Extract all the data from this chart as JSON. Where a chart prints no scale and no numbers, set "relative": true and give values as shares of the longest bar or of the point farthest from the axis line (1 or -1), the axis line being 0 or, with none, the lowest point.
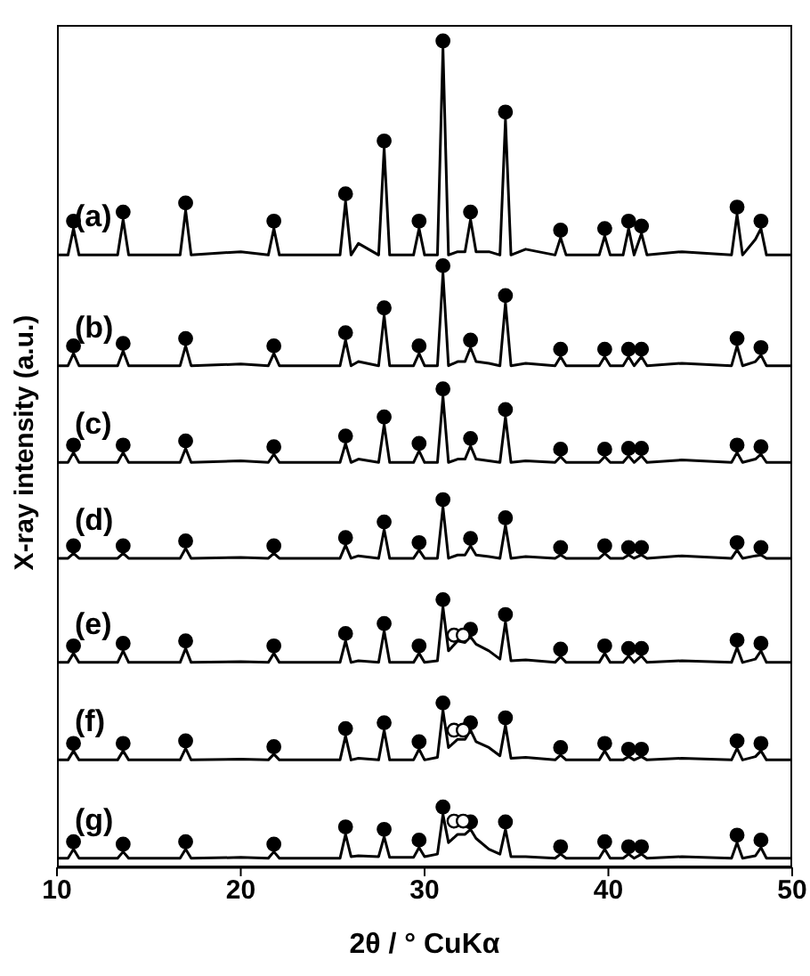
{
  "chart_data": {
    "type": "line",
    "relative": true,
    "xlabel": "2θ / ° CuKα",
    "ylabel": "X-ray intensity (a.u.)",
    "xlim": [
      10,
      50
    ],
    "xticks": [
      10,
      20,
      30,
      40,
      50
    ],
    "x": [
      10,
      10.6,
      10.9,
      11.2,
      13.3,
      13.6,
      13.9,
      16.7,
      17.0,
      17.3,
      20.0,
      21.5,
      21.8,
      22.1,
      25.4,
      25.7,
      26.0,
      26.4,
      27.5,
      27.8,
      28.1,
      29.4,
      29.7,
      30.0,
      30.7,
      31.0,
      31.3,
      31.8,
      32.2,
      32.5,
      32.8,
      33.5,
      34.1,
      34.4,
      34.7,
      35.5,
      37.1,
      37.4,
      37.7,
      39.5,
      39.8,
      40.1,
      40.8,
      41.1,
      41.4,
      41.8,
      42.1,
      44.0,
      46.7,
      47.0,
      47.3,
      48.0,
      48.3,
      48.6,
      50
    ],
    "series": [
      {
        "name": "(a)",
        "color": "#000000",
        "values": [
          0.741,
          0.741,
          0.773,
          0.741,
          0.741,
          0.784,
          0.741,
          0.741,
          0.795,
          0.741,
          0.745,
          0.741,
          0.773,
          0.741,
          0.741,
          0.806,
          0.741,
          0.755,
          0.741,
          0.87,
          0.741,
          0.741,
          0.773,
          0.741,
          0.741,
          0.991,
          0.741,
          0.745,
          0.745,
          0.784,
          0.745,
          0.745,
          0.741,
          0.905,
          0.741,
          0.748,
          0.741,
          0.762,
          0.741,
          0.741,
          0.764,
          0.741,
          0.741,
          0.773,
          0.741,
          0.767,
          0.741,
          0.745,
          0.741,
          0.79,
          0.741,
          0.76,
          0.773,
          0.741,
          0.741
        ]
      },
      {
        "name": "(b)",
        "color": "#000000",
        "values": [
          0.607,
          0.607,
          0.622,
          0.607,
          0.607,
          0.625,
          0.607,
          0.607,
          0.631,
          0.607,
          0.609,
          0.607,
          0.622,
          0.607,
          0.607,
          0.638,
          0.607,
          0.612,
          0.607,
          0.668,
          0.607,
          0.607,
          0.622,
          0.607,
          0.607,
          0.719,
          0.607,
          0.612,
          0.612,
          0.629,
          0.612,
          0.61,
          0.607,
          0.683,
          0.607,
          0.61,
          0.607,
          0.618,
          0.607,
          0.607,
          0.618,
          0.607,
          0.607,
          0.618,
          0.607,
          0.618,
          0.607,
          0.61,
          0.607,
          0.631,
          0.607,
          0.612,
          0.62,
          0.607,
          0.607
        ]
      },
      {
        "name": "(c)",
        "color": "#000000",
        "values": [
          0.49,
          0.49,
          0.502,
          0.49,
          0.49,
          0.502,
          0.49,
          0.49,
          0.507,
          0.49,
          0.492,
          0.49,
          0.5,
          0.49,
          0.49,
          0.513,
          0.49,
          0.494,
          0.49,
          0.536,
          0.49,
          0.49,
          0.504,
          0.49,
          0.49,
          0.57,
          0.49,
          0.494,
          0.494,
          0.51,
          0.494,
          0.492,
          0.49,
          0.545,
          0.49,
          0.492,
          0.49,
          0.497,
          0.49,
          0.49,
          0.497,
          0.49,
          0.49,
          0.498,
          0.49,
          0.498,
          0.49,
          0.493,
          0.49,
          0.502,
          0.49,
          0.494,
          0.5,
          0.49,
          0.49
        ]
      },
      {
        "name": "(d)",
        "color": "#000000",
        "values": [
          0.374,
          0.374,
          0.38,
          0.374,
          0.374,
          0.38,
          0.374,
          0.374,
          0.386,
          0.374,
          0.375,
          0.374,
          0.38,
          0.374,
          0.374,
          0.39,
          0.374,
          0.377,
          0.374,
          0.409,
          0.374,
          0.374,
          0.384,
          0.374,
          0.374,
          0.436,
          0.374,
          0.378,
          0.378,
          0.389,
          0.378,
          0.376,
          0.374,
          0.414,
          0.374,
          0.376,
          0.374,
          0.378,
          0.374,
          0.374,
          0.38,
          0.374,
          0.374,
          0.378,
          0.374,
          0.378,
          0.374,
          0.377,
          0.374,
          0.384,
          0.374,
          0.377,
          0.378,
          0.374,
          0.374
        ]
      },
      {
        "name": "(e)",
        "color": "#000000",
        "values": [
          0.248,
          0.248,
          0.259,
          0.248,
          0.248,
          0.262,
          0.248,
          0.248,
          0.265,
          0.248,
          0.249,
          0.248,
          0.259,
          0.248,
          0.248,
          0.274,
          0.248,
          0.25,
          0.248,
          0.286,
          0.248,
          0.248,
          0.259,
          0.248,
          0.25,
          0.315,
          0.262,
          0.274,
          0.272,
          0.279,
          0.27,
          0.262,
          0.252,
          0.297,
          0.25,
          0.251,
          0.248,
          0.255,
          0.248,
          0.248,
          0.259,
          0.248,
          0.248,
          0.256,
          0.248,
          0.256,
          0.248,
          0.25,
          0.248,
          0.266,
          0.248,
          0.252,
          0.262,
          0.248,
          0.248
        ]
      },
      {
        "name": "(f)",
        "color": "#000000",
        "values": [
          0.13,
          0.13,
          0.141,
          0.13,
          0.13,
          0.141,
          0.13,
          0.13,
          0.144,
          0.13,
          0.131,
          0.13,
          0.137,
          0.13,
          0.13,
          0.159,
          0.13,
          0.132,
          0.13,
          0.166,
          0.13,
          0.13,
          0.143,
          0.13,
          0.133,
          0.19,
          0.145,
          0.155,
          0.155,
          0.166,
          0.152,
          0.145,
          0.135,
          0.172,
          0.132,
          0.133,
          0.13,
          0.136,
          0.13,
          0.13,
          0.141,
          0.13,
          0.13,
          0.134,
          0.13,
          0.134,
          0.13,
          0.132,
          0.13,
          0.144,
          0.13,
          0.134,
          0.141,
          0.13,
          0.13
        ]
      },
      {
        "name": "(g)",
        "color": "#000000",
        "values": [
          0.011,
          0.011,
          0.022,
          0.011,
          0.011,
          0.019,
          0.011,
          0.011,
          0.022,
          0.011,
          0.012,
          0.011,
          0.019,
          0.011,
          0.011,
          0.04,
          0.013,
          0.014,
          0.013,
          0.037,
          0.012,
          0.012,
          0.024,
          0.013,
          0.016,
          0.064,
          0.03,
          0.04,
          0.04,
          0.046,
          0.035,
          0.022,
          0.016,
          0.046,
          0.013,
          0.013,
          0.011,
          0.016,
          0.011,
          0.011,
          0.022,
          0.011,
          0.011,
          0.016,
          0.011,
          0.016,
          0.011,
          0.013,
          0.011,
          0.03,
          0.011,
          0.014,
          0.024,
          0.011,
          0.011
        ]
      },
      {
        "type": "scatter",
        "marker": "circle",
        "color": "#000000",
        "x": [
          10.9,
          13.6,
          17.0,
          21.8,
          25.7,
          27.8,
          29.7,
          31.0,
          32.5,
          34.4,
          37.4,
          39.8,
          41.1,
          41.8,
          47.0,
          48.3
        ],
        "values": [
          0.782,
          0.793,
          0.804,
          0.782,
          0.815,
          0.879,
          0.782,
          1.0,
          0.793,
          0.914,
          0.771,
          0.773,
          0.782,
          0.776,
          0.799,
          0.782
        ]
      },
      {
        "type": "scatter",
        "marker": "circle",
        "color": "#000000",
        "x": [
          10.9,
          13.6,
          17.0,
          21.8,
          25.7,
          27.8,
          29.7,
          31.0,
          32.5,
          34.4,
          37.4,
          39.8,
          41.1,
          41.8,
          47.0,
          48.3
        ],
        "values": [
          0.631,
          0.634,
          0.64,
          0.631,
          0.647,
          0.677,
          0.631,
          0.728,
          0.638,
          0.692,
          0.627,
          0.627,
          0.627,
          0.627,
          0.64,
          0.629
        ]
      },
      {
        "type": "scatter",
        "marker": "circle",
        "color": "#000000",
        "x": [
          10.9,
          13.6,
          17.0,
          21.8,
          25.7,
          27.8,
          29.7,
          31.0,
          32.5,
          34.4,
          37.4,
          39.8,
          41.1,
          41.8,
          47.0,
          48.3
        ],
        "values": [
          0.511,
          0.511,
          0.516,
          0.509,
          0.522,
          0.545,
          0.513,
          0.579,
          0.519,
          0.554,
          0.506,
          0.506,
          0.507,
          0.507,
          0.511,
          0.509
        ]
      },
      {
        "type": "scatter",
        "marker": "circle",
        "color": "#000000",
        "x": [
          10.9,
          13.6,
          17.0,
          21.8,
          25.7,
          27.8,
          29.7,
          31.0,
          32.5,
          34.4,
          37.4,
          39.8,
          41.1,
          41.8,
          47.0,
          48.3
        ],
        "values": [
          0.389,
          0.389,
          0.395,
          0.389,
          0.399,
          0.418,
          0.393,
          0.445,
          0.398,
          0.423,
          0.387,
          0.389,
          0.387,
          0.387,
          0.393,
          0.387
        ]
      },
      {
        "type": "scatter",
        "marker": "circle",
        "color": "#000000",
        "x": [
          10.9,
          13.6,
          17.0,
          21.8,
          25.7,
          27.8,
          29.7,
          31.0,
          32.5,
          34.4,
          37.4,
          39.8,
          41.1,
          41.8,
          47.0,
          48.3
        ],
        "values": [
          0.268,
          0.271,
          0.274,
          0.268,
          0.283,
          0.295,
          0.268,
          0.324,
          0.288,
          0.306,
          0.264,
          0.268,
          0.265,
          0.265,
          0.275,
          0.271
        ]
      },
      {
        "type": "scatter",
        "marker": "circle",
        "color": "#000000",
        "x": [
          10.9,
          13.6,
          17.0,
          21.8,
          25.7,
          27.8,
          29.7,
          31.0,
          32.5,
          34.4,
          37.4,
          39.8,
          41.1,
          41.8,
          47.0,
          48.3
        ],
        "values": [
          0.15,
          0.15,
          0.153,
          0.146,
          0.168,
          0.175,
          0.152,
          0.199,
          0.175,
          0.181,
          0.145,
          0.15,
          0.143,
          0.143,
          0.153,
          0.15
        ]
      },
      {
        "type": "scatter",
        "marker": "circle",
        "color": "#000000",
        "x": [
          10.9,
          13.6,
          17.0,
          21.8,
          25.7,
          27.8,
          29.7,
          31.0,
          32.5,
          34.4,
          37.4,
          39.8,
          41.1,
          41.8,
          47.0,
          48.3
        ],
        "values": [
          0.031,
          0.028,
          0.031,
          0.028,
          0.049,
          0.046,
          0.033,
          0.073,
          0.055,
          0.055,
          0.025,
          0.031,
          0.025,
          0.025,
          0.039,
          0.033
        ]
      },
      {
        "type": "scatter",
        "marker": "circle",
        "color": "#ffffff",
        "x": [
          31.6,
          32.1,
          31.6,
          32.1,
          31.6,
          32.1
        ],
        "values": [
          0.281,
          0.281,
          0.166,
          0.166,
          0.056,
          0.056
        ]
      }
    ]
  }
}
